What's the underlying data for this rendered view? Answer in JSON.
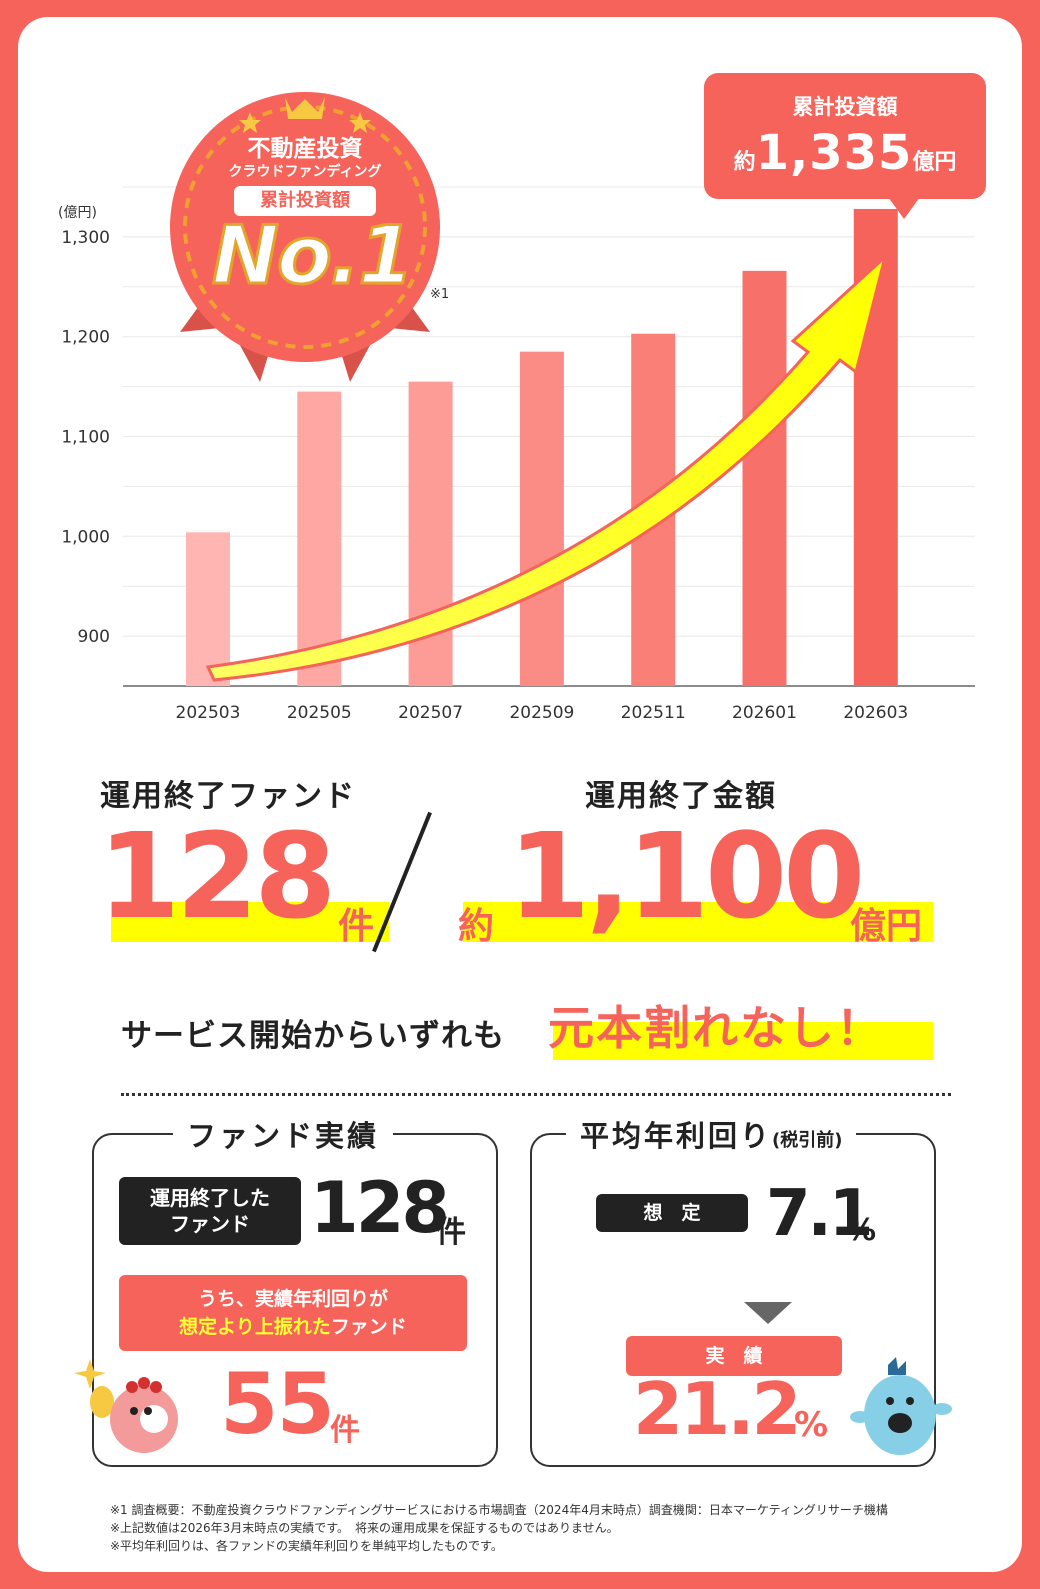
{
  "chart_data": {
    "type": "bar",
    "categories": [
      "202503",
      "202505",
      "202507",
      "202509",
      "202511",
      "202601",
      "202603"
    ],
    "values": [
      1004,
      1145,
      1155,
      1185,
      1203,
      1266,
      1328
    ],
    "yunit": "(億円)",
    "yticks": [
      900,
      1000,
      1100,
      1200,
      1300
    ],
    "ytick_labels": [
      "900",
      "1,000",
      "1,100",
      "1,200",
      "1,300"
    ],
    "ylim": [
      850,
      1350
    ],
    "grid": true,
    "bar_colors": [
      "#ffb6b2",
      "#ffa7a2",
      "#fd9c96",
      "#fb8c85",
      "#f97f77",
      "#f7706a",
      "#f5635a"
    ]
  },
  "badge": {
    "line1": "不動産投資",
    "line2": "クラウドファンディング",
    "pill": "累計投資額",
    "rank": "No.1",
    "note": "※1"
  },
  "callout": {
    "label": "累計投資額",
    "prefix": "約",
    "value": "1,335",
    "unit": "億円"
  },
  "stats": {
    "funds_label": "運用終了ファンド",
    "funds_value": "128",
    "funds_unit": "件",
    "amount_label": "運用終了金額",
    "amount_prefix": "約",
    "amount_value": "1,100",
    "amount_unit": "億円",
    "safe_text": "サービス開始からいずれも",
    "safe_highlight": "元本割れなし！"
  },
  "fund_box": {
    "title": "ファンド実績",
    "pill_line1": "運用終了した",
    "pill_line2": "ファンド",
    "count": "128",
    "count_unit": "件",
    "red_line1": "うち、実績年利回りが",
    "red_line2_hl": "想定より上振れた",
    "red_line2_rest": "ファンド",
    "sub_count": "55",
    "sub_unit": "件"
  },
  "yield_box": {
    "title": "平均年利回り",
    "title_small": "(税引前)",
    "planned_label": "想　定",
    "planned_value": "7.1",
    "planned_unit": "%",
    "actual_label": "実　績",
    "actual_value": "21.2",
    "actual_unit": "%"
  },
  "notes": [
    "※1 調査概要：不動産投資クラウドファンディングサービスにおける市場調査（2024年4月末時点）調査機関：日本マーケティングリサーチ機構",
    "※上記数値は2026年3月末時点の実績です。　将来の運用成果を保証するものではありません。",
    "※平均年利回りは、各ファンドの実績年利回りを単純平均したものです。"
  ],
  "colors": {
    "brand": "#f5635a",
    "highlight": "#ffff00",
    "arrow": "#ffff00"
  }
}
